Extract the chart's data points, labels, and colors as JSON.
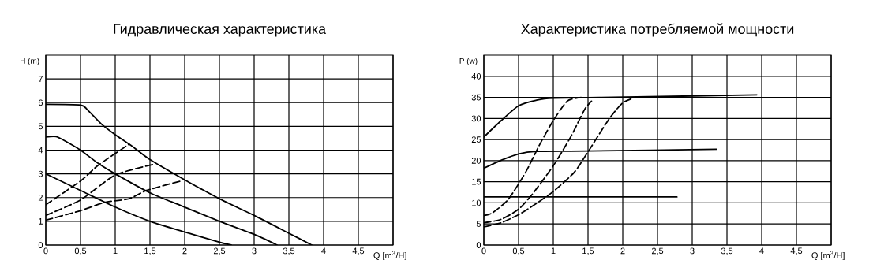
{
  "chart_data": [
    {
      "type": "line",
      "title": "Гидравлическая характеристика",
      "xlabel": "Q [m$^{3}$/H]",
      "ylabel": "H (m)",
      "xlim": [
        0,
        5
      ],
      "ylim": [
        0,
        8
      ],
      "xticks": [
        0,
        {
          "value": 0.5,
          "label": "0,5"
        },
        1,
        {
          "value": 1.5,
          "label": "1,5"
        },
        2,
        {
          "value": 2.5,
          "label": "2,5"
        },
        3,
        {
          "value": 3.5,
          "label": "3,5"
        },
        4,
        {
          "value": 4.5,
          "label": "4,5"
        }
      ],
      "yticks": [
        0,
        1,
        2,
        3,
        4,
        5,
        6,
        7
      ],
      "grid": true,
      "marker": "none",
      "series": [
        {
          "color": "#000000",
          "line_style": "solid",
          "x": [
            0,
            0.5,
            0.6,
            0.8,
            1,
            1.25,
            1.5,
            2,
            2.5,
            3,
            3.5,
            3.83
          ],
          "values": [
            5.93,
            5.9,
            5.7,
            5.1,
            4.65,
            4.15,
            3.6,
            2.75,
            1.95,
            1.25,
            0.5,
            0
          ]
        },
        {
          "color": "#000000",
          "line_style": "solid",
          "x": [
            0,
            0.15,
            0.3,
            0.5,
            0.75,
            1,
            1.5,
            2,
            2.5,
            3,
            3.33
          ],
          "values": [
            4.55,
            4.57,
            4.35,
            4.0,
            3.45,
            3.0,
            2.2,
            1.6,
            1.0,
            0.45,
            0
          ]
        },
        {
          "color": "#000000",
          "line_style": "solid",
          "x": [
            0,
            0.5,
            1,
            1.5,
            2,
            2.5,
            2.67
          ],
          "values": [
            3.0,
            2.3,
            1.6,
            1.0,
            0.55,
            0.12,
            0
          ]
        },
        {
          "color": "#000000",
          "line_style": "dashed",
          "x": [
            0,
            0.5,
            0.75,
            1.2
          ],
          "values": [
            1.7,
            2.7,
            3.35,
            4.25
          ]
        },
        {
          "color": "#000000",
          "line_style": "dashed",
          "x": [
            0,
            0.5,
            1,
            1.55
          ],
          "values": [
            1.25,
            1.9,
            2.95,
            3.4
          ]
        },
        {
          "color": "#000000",
          "line_style": "dashed",
          "x": [
            0,
            0.5,
            0.85,
            1.2,
            1.45,
            1.95
          ],
          "values": [
            1.05,
            1.45,
            1.8,
            1.95,
            2.3,
            2.7
          ]
        }
      ]
    },
    {
      "type": "line",
      "title": "Характеристика потребляемой мощности",
      "xlabel": "Q [m$^{3}$/H]",
      "ylabel": "P (w)",
      "xlim": [
        0,
        5
      ],
      "ylim": [
        0,
        45
      ],
      "xticks": [
        0,
        {
          "value": 0.5,
          "label": "0,5"
        },
        1,
        {
          "value": 1.5,
          "label": "1,5"
        },
        2,
        {
          "value": 2.5,
          "label": "2,5"
        },
        3,
        {
          "value": 3.5,
          "label": "3,5"
        },
        4,
        {
          "value": 4.5,
          "label": "4,5"
        }
      ],
      "yticks": [
        0,
        5,
        10,
        15,
        20,
        25,
        30,
        35,
        40
      ],
      "grid": true,
      "marker": "none",
      "series": [
        {
          "color": "#000000",
          "line_style": "solid",
          "x": [
            0,
            0.25,
            0.5,
            0.75,
            1,
            2.2,
            3.93
          ],
          "values": [
            25.6,
            29.5,
            33,
            34.3,
            34.8,
            35.1,
            35.6
          ]
        },
        {
          "color": "#000000",
          "line_style": "solid",
          "x": [
            0,
            0.25,
            0.5,
            0.75,
            1.5,
            3.35
          ],
          "values": [
            18.2,
            20.1,
            21.6,
            22.2,
            22.3,
            22.7
          ]
        },
        {
          "color": "#000000",
          "line_style": "solid",
          "x": [
            0,
            2.78
          ],
          "values": [
            11.4,
            11.4
          ]
        },
        {
          "color": "#000000",
          "line_style": "dashed",
          "x": [
            0,
            0.12,
            0.35,
            0.6,
            0.8,
            1.0,
            1.2,
            1.4
          ],
          "values": [
            7,
            7.6,
            10.8,
            17.2,
            23.7,
            29.5,
            34.1,
            35
          ]
        },
        {
          "color": "#000000",
          "line_style": "dashed",
          "x": [
            0,
            0.25,
            0.5,
            0.7,
            1.0,
            1.25,
            1.45,
            1.55
          ],
          "values": [
            5.3,
            6.1,
            8.5,
            12.1,
            18.8,
            25.6,
            32.1,
            34.1
          ]
        },
        {
          "color": "#000000",
          "line_style": "dashed",
          "x": [
            0,
            0.25,
            0.5,
            0.75,
            1.0,
            1.3,
            1.5,
            1.8,
            2.0,
            2.2
          ],
          "values": [
            4.3,
            5.3,
            7.2,
            9.8,
            12.7,
            17.2,
            22.1,
            29.8,
            33.7,
            35.1
          ]
        }
      ]
    }
  ]
}
